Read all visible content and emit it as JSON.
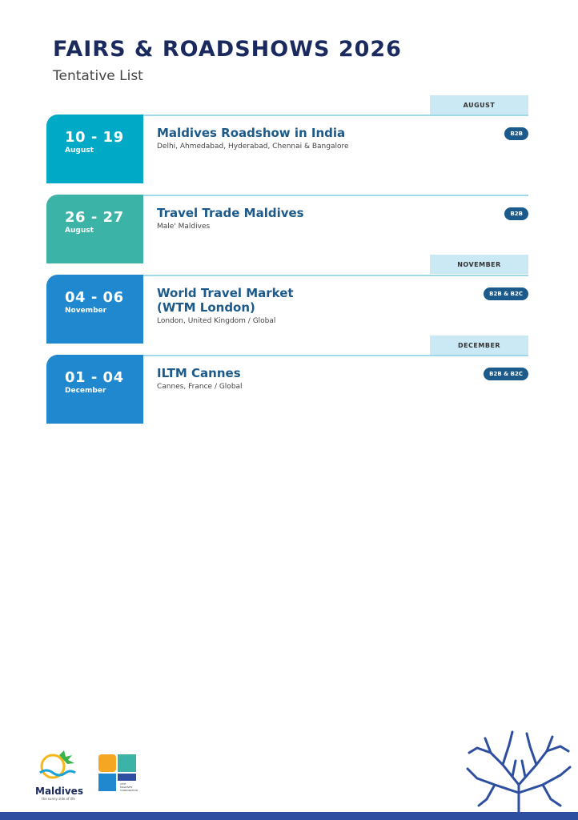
{
  "header": {
    "title": "FAIRS & ROADSHOWS 2026",
    "subtitle": "Tentative List"
  },
  "months": [
    "AUGUST",
    "NOVEMBER",
    "DECEMBER"
  ],
  "events": [
    {
      "range": "10 - 19",
      "month": "August",
      "name": "Maldives Roadshow in India",
      "location": "Delhi, Ahmedabad, Hyderabad, Chennai & Bangalore",
      "badge": "B2B",
      "color": "#00a9c6"
    },
    {
      "range": "26 - 27",
      "month": "August",
      "name": "Travel Trade Maldives",
      "location": "Male' Maldives",
      "badge": "B2B",
      "color": "#3bb3a6"
    },
    {
      "range": "04 - 06",
      "month": "November",
      "name": "World Travel Market (WTM London)",
      "location": "London, United Kingdom / Global",
      "badge": "B2B & B2C",
      "color": "#1f88cf"
    },
    {
      "range": "01 - 04",
      "month": "December",
      "name": "ILTM Cannes",
      "location": "Cannes, France / Global",
      "badge": "B2B & B2C",
      "color": "#1f88cf"
    }
  ],
  "footer": {
    "logo_maldives": "Maldives",
    "logo_tagline": "the sunny side of life",
    "logo_vmc": "VISIT MALDIVES CORPORATION",
    "bar_color": "#2e4fa0"
  }
}
